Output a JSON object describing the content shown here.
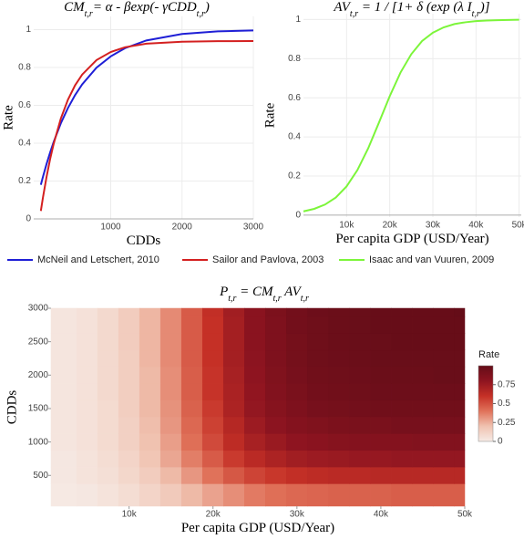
{
  "chart_data": [
    {
      "type": "line",
      "title": [
        "CM",
        "t,r",
        "=  α - βexp(- γCDD",
        "t,r",
        ")"
      ],
      "x_label": "CDDs",
      "y_label": "Rate",
      "x": [
        20,
        50,
        100,
        150,
        200,
        300,
        400,
        500,
        600,
        800,
        1000,
        1200,
        1500,
        2000,
        2500,
        3000
      ],
      "series": [
        {
          "name": "McNeil and Letschert, 2010",
          "color": "#1f1fd6",
          "values": [
            0.18,
            0.223,
            0.29,
            0.351,
            0.407,
            0.505,
            0.586,
            0.654,
            0.711,
            0.799,
            0.859,
            0.902,
            0.943,
            0.977,
            0.991,
            0.996
          ]
        },
        {
          "name": "Sailor and Pavlova, 2003",
          "color": "#d42020",
          "values": [
            0.042,
            0.114,
            0.222,
            0.316,
            0.397,
            0.53,
            0.63,
            0.706,
            0.763,
            0.839,
            0.882,
            0.907,
            0.926,
            0.936,
            0.939,
            0.94
          ]
        }
      ],
      "xlim": [
        -80,
        3000
      ],
      "xticks": [
        1000,
        2000,
        3000
      ],
      "ylim": [
        0,
        1.07
      ],
      "yticks": [
        0,
        0.2,
        0.4,
        0.6,
        0.8,
        1
      ],
      "grid": true,
      "legend": "bottom"
    },
    {
      "type": "line",
      "title": [
        "AV",
        "t,r",
        " = 1 / [1+ δ (exp (λ I",
        "t,r",
        ")]"
      ],
      "x_label": "Per capita GDP (USD/Year)",
      "y_label": "Rate",
      "x": [
        0,
        2500,
        5000,
        7500,
        10000,
        12500,
        15000,
        17500,
        20000,
        22500,
        25000,
        27500,
        30000,
        32500,
        35000,
        37500,
        40000,
        42500,
        45000,
        47500,
        50000
      ],
      "series": [
        {
          "name": "Isaac and van Vuuren, 2009",
          "color": "#7cf53a",
          "values": [
            0.019,
            0.032,
            0.054,
            0.09,
            0.147,
            0.23,
            0.341,
            0.473,
            0.608,
            0.729,
            0.823,
            0.89,
            0.933,
            0.96,
            0.977,
            0.986,
            0.992,
            0.995,
            0.997,
            0.998,
            0.999
          ]
        }
      ],
      "xlim": [
        0,
        50500
      ],
      "xticks": [
        {
          "value": 10000,
          "label": "10k"
        },
        {
          "value": 20000,
          "label": "20k"
        },
        {
          "value": 30000,
          "label": "30k"
        },
        {
          "value": 40000,
          "label": "40k"
        },
        {
          "value": 50000,
          "label": "50k"
        }
      ],
      "ylim": [
        -0.01,
        1.03
      ],
      "yticks": [
        0,
        0.2,
        0.4,
        0.6,
        0.8,
        1
      ],
      "grid": true,
      "legend": "bottom"
    },
    {
      "type": "contour",
      "title": [
        "P",
        "t,r",
        " = CM",
        "t,r",
        " AV",
        "t,r"
      ],
      "x_label": "Per capita GDP (USD/Year)",
      "y_label": "CDDs",
      "x": [
        2500,
        5000,
        7500,
        10000,
        12500,
        15000,
        17500,
        20000,
        22500,
        25000,
        27500,
        30000,
        32500,
        35000,
        37500,
        40000,
        42500,
        45000,
        47500,
        50000
      ],
      "y": [
        250,
        500,
        750,
        1000,
        1250,
        1500,
        1750,
        2000,
        2250,
        2500,
        2750,
        3000
      ],
      "z": [
        [
          0.01,
          0.02,
          0.04,
          0.07,
          0.11,
          0.16,
          0.22,
          0.28,
          0.33,
          0.38,
          0.41,
          0.43,
          0.44,
          0.45,
          0.45,
          0.45,
          0.46,
          0.46,
          0.46,
          0.46
        ],
        [
          0.02,
          0.04,
          0.06,
          0.1,
          0.15,
          0.22,
          0.31,
          0.4,
          0.48,
          0.54,
          0.58,
          0.61,
          0.63,
          0.64,
          0.64,
          0.65,
          0.65,
          0.65,
          0.65,
          0.65
        ],
        [
          0.02,
          0.04,
          0.07,
          0.11,
          0.18,
          0.27,
          0.37,
          0.47,
          0.57,
          0.64,
          0.69,
          0.73,
          0.75,
          0.76,
          0.77,
          0.77,
          0.78,
          0.78,
          0.78,
          0.78
        ],
        [
          0.03,
          0.05,
          0.08,
          0.13,
          0.2,
          0.29,
          0.41,
          0.52,
          0.63,
          0.71,
          0.76,
          0.8,
          0.82,
          0.84,
          0.85,
          0.85,
          0.85,
          0.86,
          0.86,
          0.86
        ],
        [
          0.03,
          0.05,
          0.08,
          0.13,
          0.21,
          0.31,
          0.43,
          0.55,
          0.66,
          0.75,
          0.81,
          0.85,
          0.87,
          0.89,
          0.9,
          0.9,
          0.91,
          0.91,
          0.91,
          0.91
        ],
        [
          0.03,
          0.05,
          0.08,
          0.14,
          0.22,
          0.32,
          0.45,
          0.57,
          0.69,
          0.78,
          0.84,
          0.88,
          0.91,
          0.92,
          0.93,
          0.94,
          0.94,
          0.94,
          0.94,
          0.94
        ],
        [
          0.03,
          0.05,
          0.09,
          0.14,
          0.22,
          0.33,
          0.46,
          0.59,
          0.7,
          0.79,
          0.86,
          0.9,
          0.93,
          0.94,
          0.95,
          0.96,
          0.96,
          0.96,
          0.96,
          0.96
        ],
        [
          0.03,
          0.05,
          0.09,
          0.14,
          0.22,
          0.33,
          0.46,
          0.59,
          0.71,
          0.8,
          0.87,
          0.91,
          0.94,
          0.95,
          0.96,
          0.97,
          0.97,
          0.97,
          0.98,
          0.98
        ],
        [
          0.03,
          0.05,
          0.09,
          0.14,
          0.23,
          0.34,
          0.47,
          0.6,
          0.72,
          0.81,
          0.88,
          0.92,
          0.95,
          0.96,
          0.97,
          0.98,
          0.98,
          0.98,
          0.98,
          0.98
        ],
        [
          0.03,
          0.05,
          0.09,
          0.15,
          0.23,
          0.34,
          0.47,
          0.6,
          0.72,
          0.82,
          0.88,
          0.92,
          0.95,
          0.97,
          0.98,
          0.98,
          0.99,
          0.99,
          0.99,
          0.99
        ],
        [
          0.03,
          0.05,
          0.09,
          0.15,
          0.23,
          0.34,
          0.47,
          0.6,
          0.72,
          0.82,
          0.88,
          0.93,
          0.95,
          0.97,
          0.98,
          0.99,
          0.99,
          0.99,
          0.99,
          0.99
        ],
        [
          0.03,
          0.05,
          0.09,
          0.15,
          0.23,
          0.34,
          0.47,
          0.61,
          0.73,
          0.82,
          0.89,
          0.93,
          0.96,
          0.97,
          0.98,
          0.99,
          0.99,
          0.99,
          0.99,
          1.0
        ]
      ],
      "xlim": [
        700,
        50000
      ],
      "xticks": [
        {
          "value": 10000,
          "label": "10k"
        },
        {
          "value": 20000,
          "label": "20k"
        },
        {
          "value": 30000,
          "label": "30k"
        },
        {
          "value": 40000,
          "label": "40k"
        },
        {
          "value": 50000,
          "label": "50k"
        }
      ],
      "ylim": [
        40,
        3000
      ],
      "yticks": [
        500,
        1000,
        1500,
        2000,
        2500,
        3000
      ],
      "colorscale": [
        "#f6ebe6",
        "#f0c2b0",
        "#e0725a",
        "#c53026",
        "#8e1420",
        "#650d18"
      ],
      "colorbar": {
        "title": "Rate",
        "lim": [
          0,
          1
        ],
        "ticks": [
          0,
          0.25,
          0.5,
          0.75
        ]
      }
    }
  ]
}
